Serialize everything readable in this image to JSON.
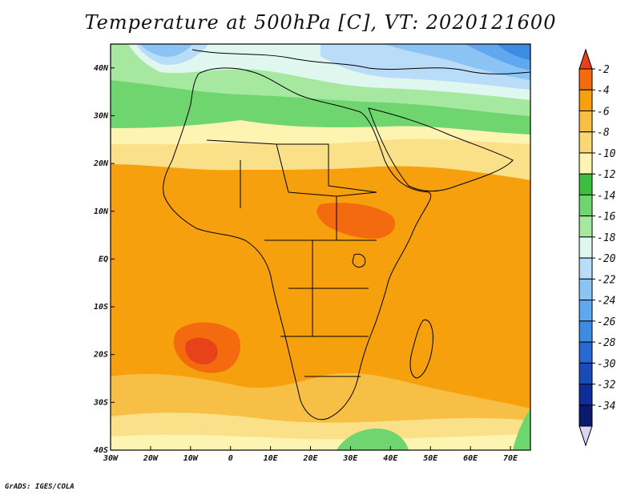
{
  "title": "Temperature at 500hPa [C], VT: 2020121600",
  "credit": "GrADS: IGES/COLA",
  "map": {
    "lon_range": [
      -30,
      75
    ],
    "lat_range": [
      -40,
      45
    ],
    "x_ticks": [
      {
        "value": -30,
        "label": "30W"
      },
      {
        "value": -20,
        "label": "20W"
      },
      {
        "value": -10,
        "label": "10W"
      },
      {
        "value": 0,
        "label": "0"
      },
      {
        "value": 10,
        "label": "10E"
      },
      {
        "value": 20,
        "label": "20E"
      },
      {
        "value": 30,
        "label": "30E"
      },
      {
        "value": 40,
        "label": "40E"
      },
      {
        "value": 50,
        "label": "50E"
      },
      {
        "value": 60,
        "label": "60E"
      },
      {
        "value": 70,
        "label": "70E"
      }
    ],
    "y_ticks": [
      {
        "value": 40,
        "label": "40N"
      },
      {
        "value": 30,
        "label": "30N"
      },
      {
        "value": 20,
        "label": "20N"
      },
      {
        "value": 10,
        "label": "10N"
      },
      {
        "value": 0,
        "label": "EQ"
      },
      {
        "value": -10,
        "label": "10S"
      },
      {
        "value": -20,
        "label": "20S"
      },
      {
        "value": -30,
        "label": "30S"
      },
      {
        "value": -40,
        "label": "40S"
      }
    ],
    "field": "temperature at 500hPa",
    "units": "C"
  },
  "colorbar": {
    "labels": [
      "-2",
      "-4",
      "-6",
      "-8",
      "-10",
      "-12",
      "-14",
      "-16",
      "-18",
      "-20",
      "-22",
      "-24",
      "-26",
      "-28",
      "-30",
      "-32",
      "-34"
    ],
    "colors": [
      "#e8421a",
      "#f36a0f",
      "#f5a00c",
      "#f7bf45",
      "#f9d772",
      "#fdf4b2",
      "#3cbf3c",
      "#6fd66f",
      "#a6e8a0",
      "#dff7ee",
      "#b9dcf8",
      "#8cc3f5",
      "#5fa7ee",
      "#3d8be3",
      "#2868d3",
      "#1a4bb8",
      "#0d2e9a",
      "#0a1a6e",
      "#dcd6f6"
    ]
  }
}
